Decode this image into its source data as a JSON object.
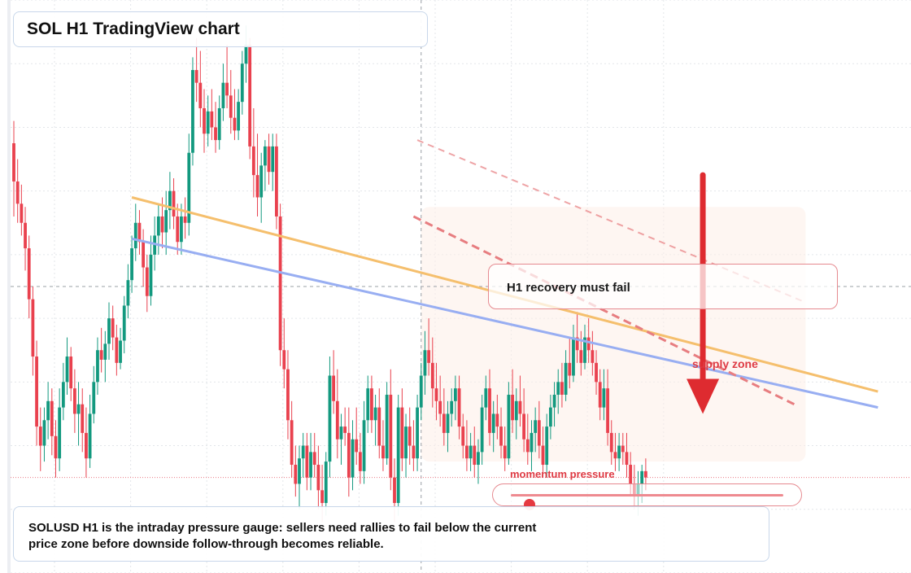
{
  "header": {
    "title": "SOL H1 TradingView chart"
  },
  "annotations": {
    "callout": "H1 recovery must fail",
    "supply_label": "supply zone",
    "momentum_label": "momentum pressure"
  },
  "footer": {
    "line1": "SOLUSD H1 is the intraday pressure gauge: sellers need rallies to fail below the current",
    "line2": "price zone before downside follow-through becomes reliable."
  },
  "gauge": {
    "level": 0.07
  },
  "colors": {
    "up": "#13997f",
    "down": "#e9414e",
    "orange_line": "#f5bf6d",
    "blue_line": "#98aef2",
    "dashed_red": "#e77d80",
    "arrow": "#de2b30",
    "grid": "#e3e6ea",
    "crosshair": "#9aa0a6",
    "price_line": "#ea7a84"
  },
  "chart_data": {
    "type": "candlestick",
    "symbol": "SOLUSD",
    "timeframe": "H1",
    "ylim": [
      60,
      240
    ],
    "grid": true,
    "current_price": 90,
    "crosshair": {
      "bar": 107,
      "price": 150
    },
    "candles": [
      [
        195,
        202,
        172,
        183
      ],
      [
        183,
        190,
        170,
        176
      ],
      [
        176,
        182,
        166,
        170
      ],
      [
        170,
        175,
        155,
        162
      ],
      [
        162,
        166,
        140,
        146
      ],
      [
        146,
        150,
        122,
        128
      ],
      [
        128,
        133,
        100,
        106
      ],
      [
        106,
        112,
        92,
        100
      ],
      [
        100,
        112,
        95,
        108
      ],
      [
        108,
        120,
        102,
        114
      ],
      [
        114,
        118,
        97,
        103
      ],
      [
        103,
        108,
        90,
        96
      ],
      [
        96,
        118,
        92,
        112
      ],
      [
        112,
        126,
        108,
        120
      ],
      [
        120,
        134,
        116,
        128
      ],
      [
        128,
        131,
        114,
        118
      ],
      [
        118,
        124,
        104,
        110
      ],
      [
        110,
        120,
        100,
        113
      ],
      [
        113,
        118,
        98,
        104
      ],
      [
        104,
        112,
        90,
        96
      ],
      [
        96,
        116,
        93,
        110
      ],
      [
        110,
        125,
        107,
        120
      ],
      [
        120,
        134,
        116,
        130
      ],
      [
        130,
        137,
        123,
        127
      ],
      [
        127,
        136,
        120,
        132
      ],
      [
        132,
        145,
        127,
        140
      ],
      [
        140,
        144,
        130,
        134
      ],
      [
        134,
        138,
        122,
        126
      ],
      [
        126,
        137,
        124,
        133
      ],
      [
        133,
        147,
        129,
        144
      ],
      [
        144,
        157,
        140,
        152
      ],
      [
        152,
        166,
        148,
        162
      ],
      [
        162,
        176,
        158,
        170
      ],
      [
        170,
        174,
        160,
        164
      ],
      [
        164,
        168,
        150,
        156
      ],
      [
        156,
        160,
        142,
        147
      ],
      [
        147,
        166,
        144,
        160
      ],
      [
        160,
        172,
        155,
        166
      ],
      [
        166,
        176,
        160,
        172
      ],
      [
        172,
        178,
        162,
        167
      ],
      [
        167,
        180,
        160,
        174
      ],
      [
        174,
        186,
        168,
        180
      ],
      [
        180,
        184,
        168,
        172
      ],
      [
        172,
        176,
        160,
        164
      ],
      [
        164,
        176,
        160,
        172
      ],
      [
        172,
        178,
        165,
        170
      ],
      [
        170,
        198,
        166,
        192
      ],
      [
        192,
        222,
        188,
        218
      ],
      [
        218,
        228,
        208,
        214
      ],
      [
        214,
        224,
        200,
        206
      ],
      [
        206,
        212,
        192,
        198
      ],
      [
        198,
        210,
        194,
        205
      ],
      [
        205,
        212,
        196,
        200
      ],
      [
        200,
        208,
        192,
        196
      ],
      [
        196,
        210,
        193,
        206
      ],
      [
        206,
        220,
        202,
        214
      ],
      [
        214,
        226,
        206,
        210
      ],
      [
        210,
        218,
        198,
        203
      ],
      [
        203,
        212,
        196,
        199
      ],
      [
        199,
        212,
        196,
        208
      ],
      [
        208,
        224,
        204,
        220
      ],
      [
        220,
        232,
        214,
        226
      ],
      [
        226,
        228,
        190,
        194
      ],
      [
        194,
        206,
        178,
        185
      ],
      [
        185,
        198,
        172,
        178
      ],
      [
        178,
        192,
        170,
        188
      ],
      [
        188,
        196,
        180,
        194
      ],
      [
        194,
        198,
        182,
        186
      ],
      [
        186,
        198,
        180,
        194
      ],
      [
        194,
        198,
        168,
        172
      ],
      [
        172,
        176,
        125,
        130
      ],
      [
        130,
        140,
        118,
        124
      ],
      [
        124,
        130,
        102,
        108
      ],
      [
        108,
        114,
        90,
        94
      ],
      [
        94,
        100,
        84,
        88
      ],
      [
        88,
        100,
        80,
        96
      ],
      [
        96,
        104,
        90,
        100
      ],
      [
        100,
        104,
        86,
        90
      ],
      [
        90,
        104,
        86,
        98
      ],
      [
        98,
        104,
        90,
        94
      ],
      [
        94,
        100,
        80,
        86
      ],
      [
        86,
        94,
        76,
        82
      ],
      [
        82,
        98,
        78,
        95
      ],
      [
        95,
        128,
        90,
        122
      ],
      [
        122,
        130,
        110,
        114
      ],
      [
        114,
        124,
        96,
        102
      ],
      [
        102,
        110,
        94,
        106
      ],
      [
        106,
        112,
        100,
        104
      ],
      [
        104,
        112,
        84,
        90
      ],
      [
        90,
        108,
        86,
        102
      ],
      [
        102,
        112,
        94,
        98
      ],
      [
        98,
        104,
        88,
        92
      ],
      [
        92,
        114,
        88,
        108
      ],
      [
        108,
        122,
        104,
        118
      ],
      [
        118,
        122,
        104,
        108
      ],
      [
        108,
        116,
        100,
        112
      ],
      [
        112,
        118,
        96,
        100
      ],
      [
        100,
        108,
        92,
        96
      ],
      [
        96,
        120,
        94,
        116
      ],
      [
        116,
        124,
        86,
        90
      ],
      [
        90,
        96,
        76,
        82
      ],
      [
        82,
        116,
        78,
        112
      ],
      [
        112,
        118,
        92,
        96
      ],
      [
        96,
        110,
        90,
        106
      ],
      [
        106,
        112,
        94,
        100
      ],
      [
        100,
        108,
        92,
        96
      ],
      [
        96,
        116,
        92,
        112
      ],
      [
        112,
        126,
        108,
        122
      ],
      [
        122,
        136,
        116,
        130
      ],
      [
        130,
        140,
        122,
        126
      ],
      [
        126,
        134,
        112,
        118
      ],
      [
        118,
        126,
        108,
        114
      ],
      [
        114,
        122,
        106,
        110
      ],
      [
        110,
        118,
        100,
        104
      ],
      [
        104,
        114,
        98,
        110
      ],
      [
        110,
        118,
        106,
        114
      ],
      [
        114,
        122,
        108,
        118
      ],
      [
        118,
        122,
        102,
        106
      ],
      [
        106,
        110,
        96,
        100
      ],
      [
        100,
        108,
        92,
        96
      ],
      [
        96,
        104,
        92,
        100
      ],
      [
        100,
        106,
        90,
        94
      ],
      [
        94,
        102,
        88,
        98
      ],
      [
        98,
        116,
        94,
        112
      ],
      [
        112,
        122,
        108,
        118
      ],
      [
        118,
        124,
        100,
        104
      ],
      [
        104,
        114,
        98,
        110
      ],
      [
        110,
        116,
        102,
        106
      ],
      [
        106,
        112,
        96,
        100
      ],
      [
        100,
        106,
        92,
        96
      ],
      [
        96,
        120,
        94,
        116
      ],
      [
        116,
        124,
        104,
        108
      ],
      [
        108,
        118,
        102,
        114
      ],
      [
        114,
        122,
        106,
        110
      ],
      [
        110,
        118,
        98,
        102
      ],
      [
        102,
        110,
        94,
        98
      ],
      [
        98,
        108,
        92,
        104
      ],
      [
        104,
        112,
        98,
        108
      ],
      [
        108,
        114,
        96,
        100
      ],
      [
        100,
        106,
        90,
        94
      ],
      [
        94,
        110,
        90,
        106
      ],
      [
        106,
        116,
        102,
        112
      ],
      [
        112,
        120,
        106,
        116
      ],
      [
        116,
        124,
        110,
        120
      ],
      [
        120,
        126,
        112,
        116
      ],
      [
        116,
        130,
        114,
        126
      ],
      [
        126,
        134,
        118,
        122
      ],
      [
        122,
        138,
        120,
        134
      ],
      [
        134,
        142,
        126,
        130
      ],
      [
        130,
        136,
        122,
        126
      ],
      [
        126,
        138,
        124,
        134
      ],
      [
        134,
        140,
        126,
        130
      ],
      [
        130,
        136,
        122,
        126
      ],
      [
        126,
        130,
        116,
        120
      ],
      [
        120,
        124,
        108,
        112
      ],
      [
        112,
        124,
        108,
        118
      ],
      [
        118,
        124,
        100,
        104
      ],
      [
        104,
        108,
        94,
        98
      ],
      [
        98,
        104,
        92,
        96
      ],
      [
        96,
        104,
        92,
        100
      ],
      [
        100,
        104,
        94,
        98
      ],
      [
        98,
        104,
        90,
        94
      ],
      [
        94,
        98,
        84,
        88
      ],
      [
        88,
        94,
        80,
        84
      ],
      [
        84,
        92,
        78,
        88
      ],
      [
        88,
        94,
        82,
        92
      ],
      [
        92,
        96,
        86,
        90
      ]
    ],
    "trendlines": [
      {
        "name": "orange",
        "from": [
          31,
          178
        ],
        "to": [
          227,
          117
        ],
        "style": "solid"
      },
      {
        "name": "blue",
        "from": [
          31,
          165
        ],
        "to": [
          227,
          112
        ],
        "style": "solid"
      },
      {
        "name": "red-dash-1",
        "from": [
          106,
          196
        ],
        "to": [
          208,
          145
        ],
        "style": "dashed"
      },
      {
        "name": "red-dash-2",
        "from": [
          105,
          172
        ],
        "to": [
          205,
          113
        ],
        "style": "dashed"
      }
    ],
    "supply_zone": {
      "from_bar": 107,
      "to_bar": 208,
      "low": 95,
      "high": 175
    },
    "arrow": {
      "bar": 181,
      "from_price": 185,
      "to_price": 110
    }
  }
}
